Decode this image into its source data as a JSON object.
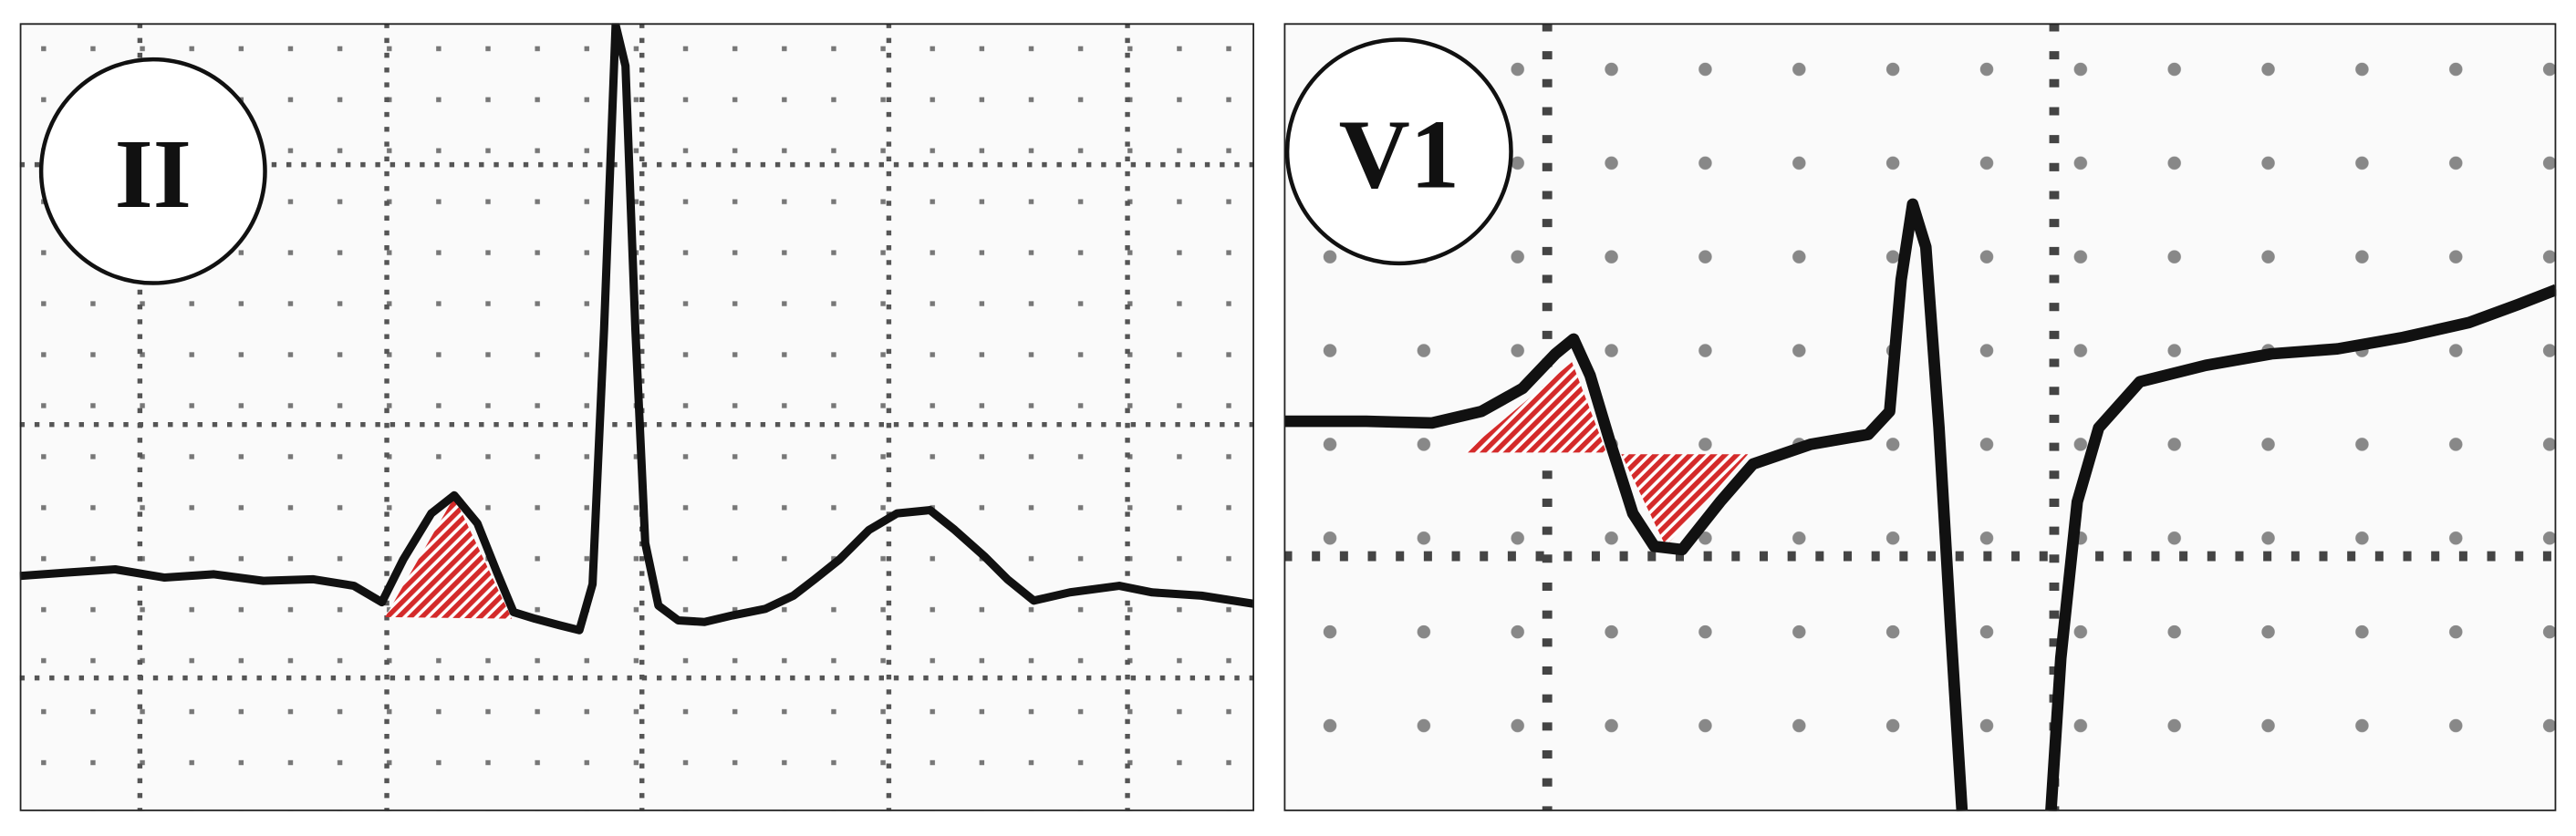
{
  "panels": [
    {
      "label": "II"
    },
    {
      "label": "V1"
    }
  ]
}
